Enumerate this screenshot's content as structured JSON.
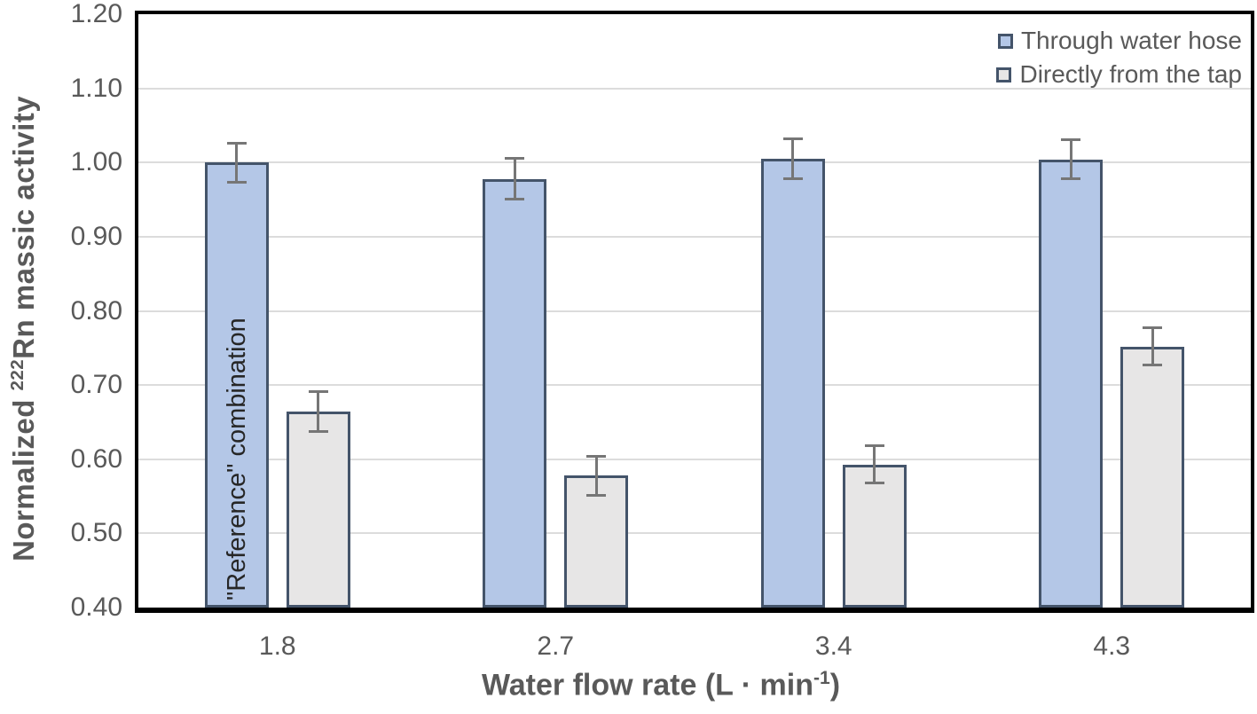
{
  "chart_data": {
    "type": "bar",
    "title": "",
    "categories": [
      "1.8",
      "2.7",
      "3.4",
      "4.3"
    ],
    "series": [
      {
        "name": "Through water hose",
        "fill": "#B4C7E7",
        "border": "#44546A",
        "values": [
          1.0,
          0.978,
          1.005,
          1.004
        ],
        "errors": [
          0.028,
          0.029,
          0.029,
          0.028
        ]
      },
      {
        "name": "Directly from the tap",
        "fill": "#E7E6E6",
        "border": "#44546A",
        "values": [
          0.664,
          0.578,
          0.593,
          0.752
        ],
        "errors": [
          0.029,
          0.028,
          0.027,
          0.027
        ]
      }
    ],
    "ylim": [
      0.4,
      1.2
    ],
    "yticks": [
      {
        "value": 1.2,
        "label": "1.20"
      },
      {
        "value": 1.1,
        "label": "1.10"
      },
      {
        "value": 1.0,
        "label": "1.00"
      },
      {
        "value": 0.9,
        "label": "0.90"
      },
      {
        "value": 0.8,
        "label": "0.80"
      },
      {
        "value": 0.7,
        "label": "0.70"
      },
      {
        "value": 0.6,
        "label": "0.60"
      },
      {
        "value": 0.5,
        "label": "0.50"
      },
      {
        "value": 0.4,
        "label": "0.40"
      }
    ],
    "grid": "horizontal",
    "legend_position": "top-right-inside",
    "annotation": "\"Reference\" combination",
    "xlabel": {
      "main": "Water flow rate (L · min",
      "sup": "-1",
      "close": ")"
    },
    "ylabel": {
      "pre": "Normalized ",
      "sup": "222",
      "post": "Rn massic activity"
    }
  },
  "colors": {
    "axis_text": "#595959",
    "annotation_text": "#262626",
    "error_bar": "#767676",
    "gridline": "#DCDCDC",
    "plot_border": "#000000",
    "series1_fill": "#B4C7E7",
    "series2_fill": "#E7E6E6",
    "bar_border": "#44546A"
  }
}
